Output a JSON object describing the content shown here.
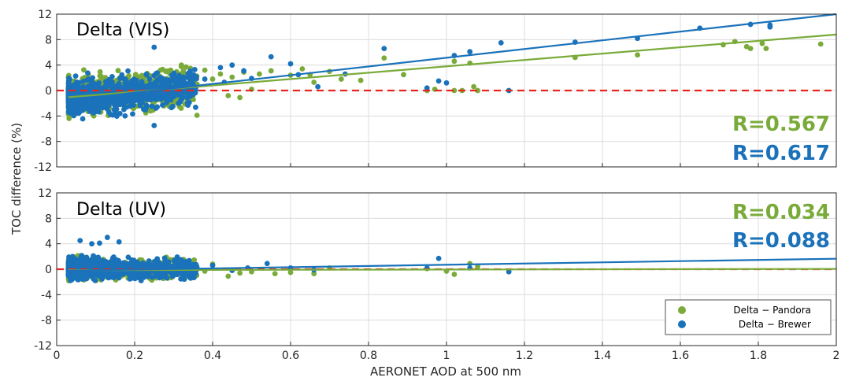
{
  "colors": {
    "pandora": "#7AAB3A",
    "brewer": "#1A72BA",
    "zero_line": "#E8261F",
    "grid": "#DCDCDC",
    "axis": "#262626"
  },
  "chart_data": [
    {
      "type": "scatter",
      "title": "Delta (VIS)",
      "xlabel": "AERONET AOD at 500 nm",
      "ylabel": "TOC difference (%)",
      "xlim": [
        0,
        2
      ],
      "ylim": [
        -12,
        12
      ],
      "xticks": [
        "0",
        "0.2",
        "0.4",
        "0.6",
        "0.8",
        "1",
        "1.2",
        "1.4",
        "1.6",
        "1.8",
        "2"
      ],
      "yticks": [
        "12",
        "8",
        "4",
        "0",
        "-4",
        "-8",
        "-12"
      ],
      "grid": true,
      "reference_line": {
        "y": 0,
        "style": "dashed"
      },
      "series": [
        {
          "name": "Delta − Pandora",
          "color_key": "pandora",
          "fit": {
            "slope": 5.0,
            "intercept": -1.2
          },
          "r_label": "R=0.567",
          "points": [
            [
              0.32,
              4.0
            ],
            [
              0.38,
              3.2
            ],
            [
              0.42,
              2.6
            ],
            [
              0.45,
              2.1
            ],
            [
              0.48,
              2.9
            ],
            [
              0.52,
              2.6
            ],
            [
              0.55,
              3.1
            ],
            [
              0.6,
              2.4
            ],
            [
              0.63,
              3.4
            ],
            [
              0.65,
              2.5
            ],
            [
              0.66,
              1.3
            ],
            [
              0.7,
              3.0
            ],
            [
              0.73,
              1.8
            ],
            [
              0.78,
              1.6
            ],
            [
              0.84,
              5.1
            ],
            [
              0.89,
              2.5
            ],
            [
              0.95,
              0.0
            ],
            [
              0.97,
              0.2
            ],
            [
              1.02,
              4.6
            ],
            [
              1.02,
              0.0
            ],
            [
              1.04,
              0.0
            ],
            [
              1.06,
              4.3
            ],
            [
              1.07,
              0.6
            ],
            [
              1.08,
              0.0
            ],
            [
              1.33,
              5.2
            ],
            [
              1.49,
              5.6
            ],
            [
              1.71,
              7.2
            ],
            [
              1.74,
              7.7
            ],
            [
              1.77,
              6.9
            ],
            [
              1.78,
              6.6
            ],
            [
              1.81,
              7.4
            ],
            [
              1.82,
              6.6
            ],
            [
              1.96,
              7.3
            ],
            [
              0.36,
              -3.9
            ],
            [
              0.44,
              -0.8
            ],
            [
              0.47,
              -1.1
            ],
            [
              0.5,
              0.2
            ],
            [
              0.4,
              1.8
            ],
            [
              0.34,
              0.9
            ],
            [
              0.31,
              -2.0
            ]
          ]
        },
        {
          "name": "Delta − Brewer",
          "color_key": "brewer",
          "fit": {
            "slope": 6.85,
            "intercept": -1.7
          },
          "r_label": "R=0.617",
          "points": [
            [
              0.25,
              6.8
            ],
            [
              0.25,
              -5.5
            ],
            [
              0.42,
              3.6
            ],
            [
              0.45,
              4.0
            ],
            [
              0.48,
              3.1
            ],
            [
              0.55,
              5.3
            ],
            [
              0.6,
              4.2
            ],
            [
              0.62,
              2.5
            ],
            [
              0.67,
              0.6
            ],
            [
              0.74,
              2.6
            ],
            [
              0.84,
              6.6
            ],
            [
              0.95,
              0.4
            ],
            [
              0.98,
              1.5
            ],
            [
              1.0,
              1.2
            ],
            [
              1.02,
              5.5
            ],
            [
              1.06,
              6.1
            ],
            [
              1.14,
              7.5
            ],
            [
              1.16,
              0.0
            ],
            [
              1.33,
              7.6
            ],
            [
              1.49,
              8.2
            ],
            [
              1.65,
              9.8
            ],
            [
              1.78,
              10.4
            ],
            [
              1.83,
              10.0
            ],
            [
              1.83,
              10.3
            ],
            [
              0.34,
              2.4
            ],
            [
              0.38,
              1.8
            ],
            [
              0.43,
              1.3
            ],
            [
              0.5,
              1.9
            ]
          ]
        }
      ]
    },
    {
      "type": "scatter",
      "title": "Delta (UV)",
      "xlabel": "AERONET AOD at 500 nm",
      "ylabel": "TOC difference (%)",
      "xlim": [
        0,
        2
      ],
      "ylim": [
        -12,
        12
      ],
      "xticks": [
        "0",
        "0.2",
        "0.4",
        "0.6",
        "0.8",
        "1",
        "1.2",
        "1.4",
        "1.6",
        "1.8",
        "2"
      ],
      "yticks": [
        "12",
        "8",
        "4",
        "0",
        "-4",
        "-8",
        "-12"
      ],
      "grid": true,
      "reference_line": {
        "y": 0,
        "style": "dashed"
      },
      "legend": {
        "placement": "bottom-right",
        "entries": [
          "Delta − Pandora",
          "Delta − Brewer"
        ]
      },
      "series": [
        {
          "name": "Delta − Pandora",
          "color_key": "pandora",
          "fit": {
            "slope": 0.1,
            "intercept": -0.15
          },
          "r_label": "R=0.034",
          "points": [
            [
              0.34,
              0.6
            ],
            [
              0.38,
              -0.3
            ],
            [
              0.4,
              0.8
            ],
            [
              0.44,
              -1.1
            ],
            [
              0.47,
              -0.6
            ],
            [
              0.5,
              -0.4
            ],
            [
              0.56,
              -0.7
            ],
            [
              0.6,
              -0.5
            ],
            [
              0.66,
              -0.7
            ],
            [
              0.7,
              0.2
            ],
            [
              0.95,
              0.1
            ],
            [
              1.0,
              -0.3
            ],
            [
              1.02,
              -0.8
            ],
            [
              1.06,
              0.9
            ],
            [
              1.08,
              0.4
            ],
            [
              0.3,
              1.5
            ]
          ]
        },
        {
          "name": "Delta − Brewer",
          "color_key": "brewer",
          "fit": {
            "slope": 0.95,
            "intercept": -0.25
          },
          "r_label": "R=0.088",
          "points": [
            [
              0.06,
              4.5
            ],
            [
              0.09,
              4.0
            ],
            [
              0.13,
              5.0
            ],
            [
              0.11,
              4.1
            ],
            [
              0.16,
              4.3
            ],
            [
              0.34,
              0.9
            ],
            [
              0.4,
              0.6
            ],
            [
              0.45,
              -0.2
            ],
            [
              0.49,
              0.2
            ],
            [
              0.54,
              0.9
            ],
            [
              0.6,
              0.2
            ],
            [
              0.66,
              -0.1
            ],
            [
              0.95,
              0.2
            ],
            [
              0.98,
              1.7
            ],
            [
              1.06,
              0.2
            ],
            [
              1.16,
              -0.4
            ]
          ]
        }
      ]
    }
  ]
}
